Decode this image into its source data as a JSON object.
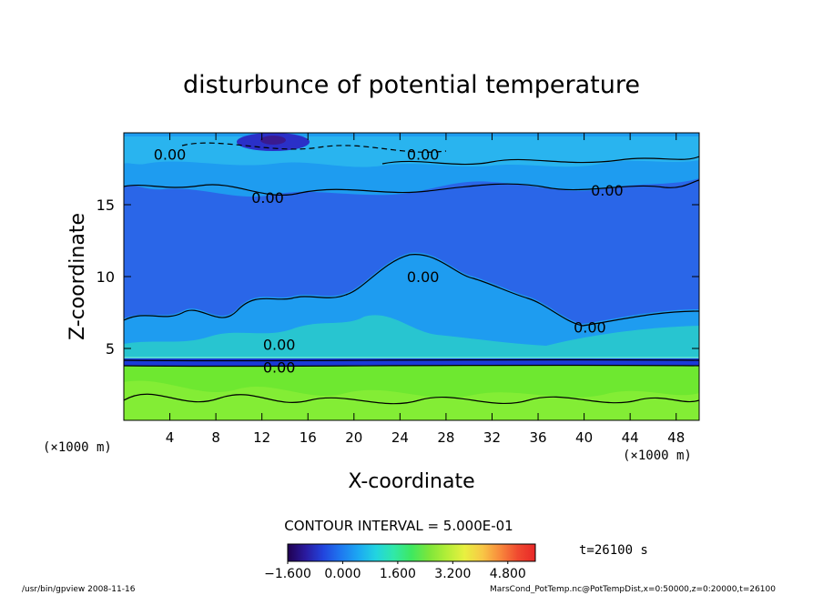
{
  "chart_data": {
    "type": "heatmap",
    "title": "disturbunce of potential temperature",
    "xlabel": "X-coordinate",
    "ylabel": "Z-coordinate",
    "x_unit_left": "(×1000 m)",
    "x_unit_right": "(×1000 m)",
    "xlim": [
      0,
      50
    ],
    "ylim": [
      0,
      20
    ],
    "x_ticks": [
      4,
      8,
      12,
      16,
      20,
      24,
      28,
      32,
      36,
      40,
      44,
      48
    ],
    "y_ticks": [
      5,
      10,
      15
    ],
    "contour_interval_text": "CONTOUR INTERVAL = 5.000E-01",
    "time_text": "t=26100 s",
    "contour_labels": [
      {
        "text": "0.00",
        "x": 4.0,
        "z": 18.5
      },
      {
        "text": "0.00",
        "x": 12.5,
        "z": 15.5
      },
      {
        "text": "0.00",
        "x": 26.0,
        "z": 18.5
      },
      {
        "text": "0.00",
        "x": 42.0,
        "z": 16.0
      },
      {
        "text": "0.00",
        "x": 26.0,
        "z": 10.0
      },
      {
        "text": "0.00",
        "x": 40.5,
        "z": 6.5
      },
      {
        "text": "0.00",
        "x": 13.5,
        "z": 5.3
      },
      {
        "text": "0.00",
        "x": 13.5,
        "z": 3.7
      }
    ],
    "colorbar": {
      "min": -1.6,
      "max": 5.6,
      "tick_labels": [
        "−1.600",
        "0.000",
        "1.600",
        "3.200",
        "4.800"
      ],
      "tick_values": [
        -1.6,
        0.0,
        1.6,
        3.2,
        4.8
      ],
      "colors": [
        "#200050",
        "#2a1a9e",
        "#2244dd",
        "#1e78f0",
        "#1ca8f2",
        "#22d4e0",
        "#30e8a8",
        "#3ee860",
        "#7ee63a",
        "#b4ee38",
        "#e8f040",
        "#f8c846",
        "#f88a3c",
        "#f04a30",
        "#e82828"
      ]
    },
    "field_colors": {
      "upper_cyan": "#1e9cf0",
      "mid_blue": "#2a66e8",
      "deep_blue": "#1a3ad8",
      "low_green": "#6ee830",
      "bright_green": "#8cf038"
    }
  },
  "footer": {
    "left": "/usr/bin/gpview   2008-11-16",
    "right": "MarsCond_PotTemp.nc@PotTempDist,x=0:50000,z=0:20000,t=26100"
  }
}
